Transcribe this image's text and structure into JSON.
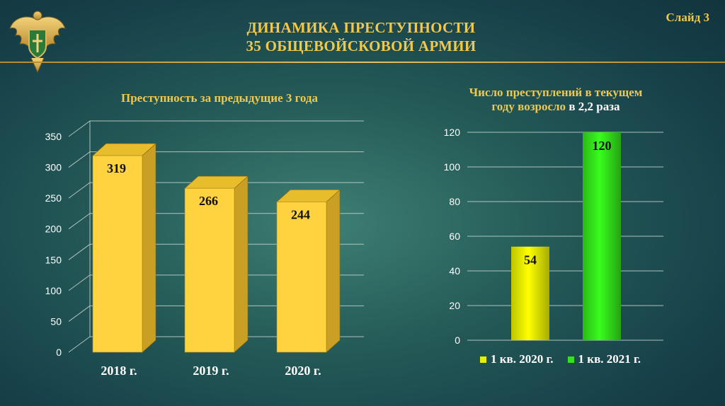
{
  "slide": {
    "title_line1": "ДИНАМИКА ПРЕСТУПНОСТИ",
    "title_line2": "35 ОБЩЕВОЙСКОВОЙ АРМИИ",
    "slide_number": "Слайд 3"
  },
  "colors": {
    "title": "#f2c84b",
    "bar_gold": "#ffd23f",
    "bar_yellow": "#e6f000",
    "bar_green": "#33e21b"
  },
  "left": {
    "subtitle": "Преступность за предыдущие 3 года"
  },
  "right": {
    "subtitle_line1": "Число преступлений в текущем",
    "subtitle_line2_a": "году возросло ",
    "subtitle_line2_b": "в 2,2 раза"
  },
  "chart_data": [
    {
      "type": "bar",
      "title": "Преступность за предыдущие 3 года",
      "categories": [
        "2018 г.",
        "2019 г.",
        "2020 г."
      ],
      "values": [
        319,
        266,
        244
      ],
      "data_labels": [
        "319",
        "266",
        "244"
      ],
      "ylim": [
        0,
        350
      ],
      "yticks": [
        0,
        50,
        100,
        150,
        200,
        250,
        300,
        350
      ],
      "style": "3d",
      "grid": true,
      "legend": "none"
    },
    {
      "type": "bar",
      "title": "Число преступлений в текущем году возросло в 2,2 раза",
      "categories": [
        "1 кв. 2020 г.",
        "1 кв. 2021 г."
      ],
      "values": [
        54,
        120
      ],
      "data_labels": [
        "54",
        "120"
      ],
      "ylim": [
        0,
        120
      ],
      "yticks": [
        0,
        20,
        40,
        60,
        80,
        100,
        120
      ],
      "grid": true,
      "legend": "bottom"
    }
  ]
}
